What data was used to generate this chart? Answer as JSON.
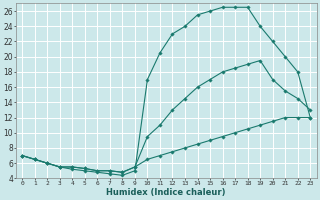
{
  "xlabel": "Humidex (Indice chaleur)",
  "bg_color": "#cce8ea",
  "grid_color": "#ffffff",
  "line_color": "#1a7a6e",
  "xlim": [
    -0.5,
    23.5
  ],
  "ylim": [
    4,
    27
  ],
  "xticks": [
    0,
    1,
    2,
    3,
    4,
    5,
    6,
    7,
    8,
    9,
    10,
    11,
    12,
    13,
    14,
    15,
    16,
    17,
    18,
    19,
    20,
    21,
    22,
    23
  ],
  "yticks": [
    4,
    6,
    8,
    10,
    12,
    14,
    16,
    18,
    20,
    22,
    24,
    26
  ],
  "series": [
    {
      "x": [
        0,
        1,
        2,
        3,
        4,
        5,
        6,
        7,
        8,
        9,
        10,
        11,
        12,
        13,
        14,
        15,
        16,
        17,
        18,
        19,
        20,
        21,
        22,
        23
      ],
      "y": [
        7.0,
        6.5,
        6.0,
        5.5,
        5.2,
        5.0,
        4.8,
        4.6,
        4.4,
        5.0,
        17.0,
        20.5,
        23.0,
        24.0,
        25.5,
        26.0,
        26.5,
        26.5,
        26.5,
        24.0,
        22.0,
        20.0,
        18.0,
        12.0
      ]
    },
    {
      "x": [
        0,
        1,
        2,
        3,
        4,
        5,
        6,
        7,
        8,
        9,
        10,
        11,
        12,
        13,
        14,
        15,
        16,
        17,
        18,
        19,
        20,
        21,
        22,
        23
      ],
      "y": [
        7.0,
        6.5,
        6.0,
        5.5,
        5.5,
        5.3,
        5.0,
        5.0,
        4.8,
        5.5,
        9.5,
        11.0,
        13.0,
        14.5,
        16.0,
        17.0,
        18.0,
        18.5,
        19.0,
        19.5,
        17.0,
        15.5,
        14.5,
        13.0
      ]
    },
    {
      "x": [
        0,
        1,
        2,
        3,
        4,
        5,
        6,
        7,
        8,
        9,
        10,
        11,
        12,
        13,
        14,
        15,
        16,
        17,
        18,
        19,
        20,
        21,
        22,
        23
      ],
      "y": [
        7.0,
        6.5,
        6.0,
        5.5,
        5.5,
        5.3,
        5.0,
        5.0,
        4.8,
        5.5,
        6.5,
        7.0,
        7.5,
        8.0,
        8.5,
        9.0,
        9.5,
        10.0,
        10.5,
        11.0,
        11.5,
        12.0,
        12.0,
        12.0
      ]
    }
  ]
}
